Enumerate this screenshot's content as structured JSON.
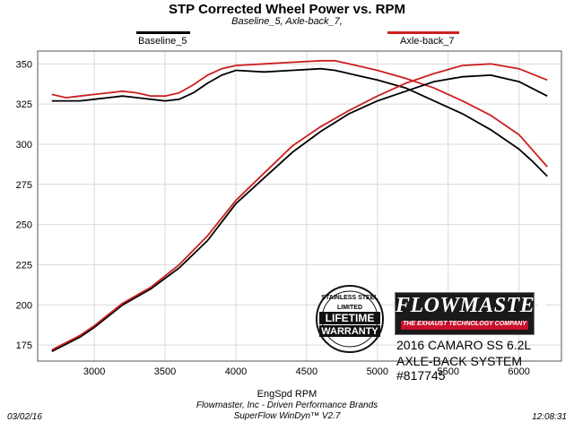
{
  "header": {
    "title": "STP Corrected Wheel Power vs. RPM",
    "subtitle": "Baseline_5, Axle-back_7,"
  },
  "legend": [
    {
      "name": "Baseline_5",
      "color": "#000000"
    },
    {
      "name": "Axle-back_7",
      "color": "#cc1f1f"
    }
  ],
  "footer": {
    "date": "03/02/16",
    "company": "Flowmaster, Inc - Driven Performance Brands",
    "software": "SuperFlow WinDyn™ V2.7",
    "time": "12:08:31"
  },
  "brand": {
    "logo": "FLOWMASTER",
    "tagline": "THE EXHAUST TECHNOLOGY COMPANY",
    "model_line1": "2016 CAMARO SS 6.2L",
    "model_line2": "AXLE-BACK SYSTEM #817745"
  },
  "seal": {
    "top_text": "STAINLESS STEEL",
    "line1": "LIMITED",
    "line2": "LIFETIME",
    "line3": "WARRANTY"
  },
  "chart_data": {
    "type": "line",
    "title": "STP Corrected Wheel Power vs. RPM",
    "xlabel": "EngSpd RPM",
    "ylabel": "",
    "xlim": [
      2600,
      6300
    ],
    "ylim": [
      165,
      358
    ],
    "xticks": [
      3000,
      3500,
      4000,
      4500,
      5000,
      5500,
      6000
    ],
    "yticks": [
      175,
      200,
      225,
      250,
      275,
      300,
      325,
      350
    ],
    "grid": true,
    "legend_position": "top",
    "series": [
      {
        "name": "Baseline_5",
        "group": "upper",
        "color": "#000000",
        "x": [
          2700,
          2800,
          2900,
          3000,
          3100,
          3200,
          3300,
          3400,
          3500,
          3600,
          3700,
          3800,
          3900,
          4000,
          4200,
          4400,
          4600,
          4700,
          4800,
          4900,
          5000,
          5200,
          5400,
          5600,
          5800,
          6000,
          6100,
          6200
        ],
        "y": [
          327,
          327,
          327,
          328,
          329,
          330,
          329,
          328,
          327,
          328,
          332,
          338,
          343,
          346,
          345,
          346,
          347,
          346,
          344,
          342,
          340,
          335,
          327,
          319,
          309,
          297,
          289,
          280
        ]
      },
      {
        "name": "Axle-back_7",
        "group": "upper",
        "color": "#cc1f1f",
        "x": [
          2700,
          2800,
          2900,
          3000,
          3100,
          3200,
          3300,
          3400,
          3500,
          3600,
          3700,
          3800,
          3900,
          4000,
          4200,
          4400,
          4600,
          4700,
          4800,
          4900,
          5000,
          5200,
          5400,
          5600,
          5800,
          6000,
          6100,
          6200
        ],
        "y": [
          331,
          329,
          330,
          331,
          332,
          333,
          332,
          330,
          330,
          332,
          337,
          343,
          347,
          349,
          350,
          351,
          352,
          352,
          350,
          348,
          346,
          341,
          335,
          327,
          318,
          306,
          296,
          286
        ]
      },
      {
        "name": "Baseline_5",
        "group": "lower",
        "color": "#000000",
        "x": [
          2700,
          2900,
          3000,
          3200,
          3400,
          3600,
          3800,
          4000,
          4200,
          4400,
          4600,
          4800,
          5000,
          5200,
          5400,
          5600,
          5800,
          6000,
          6200
        ],
        "y": [
          171,
          180,
          186,
          200,
          210,
          223,
          240,
          263,
          279,
          295,
          308,
          319,
          327,
          333,
          339,
          342,
          343,
          339,
          330
        ]
      },
      {
        "name": "Axle-back_7",
        "group": "lower",
        "color": "#cc1f1f",
        "x": [
          2700,
          2900,
          3000,
          3200,
          3400,
          3600,
          3800,
          4000,
          4200,
          4400,
          4600,
          4800,
          5000,
          5200,
          5400,
          5600,
          5800,
          6000,
          6200
        ],
        "y": [
          172,
          181,
          187,
          201,
          211,
          225,
          243,
          265,
          282,
          299,
          311,
          321,
          330,
          338,
          344,
          349,
          350,
          347,
          340
        ]
      }
    ]
  }
}
